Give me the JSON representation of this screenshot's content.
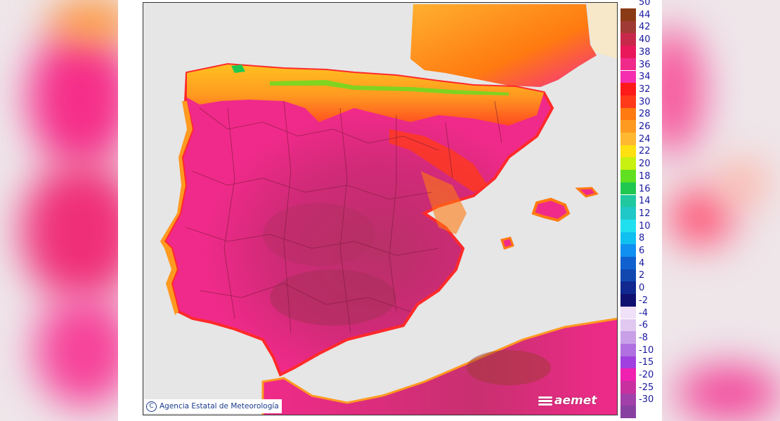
{
  "credit": {
    "text": "Agencia Estatal de Meteorología",
    "copyright_symbol": "C"
  },
  "logo": {
    "text": "aemet"
  },
  "legend": {
    "scale": [
      {
        "label": "50",
        "color": "#8a3a14"
      },
      {
        "label": "44",
        "color": "#a03a34"
      },
      {
        "label": "42",
        "color": "#c8284a"
      },
      {
        "label": "40",
        "color": "#e8185a"
      },
      {
        "label": "38",
        "color": "#f02a8a"
      },
      {
        "label": "36",
        "color": "#f52eb0"
      },
      {
        "label": "34",
        "color": "#ff1a1a"
      },
      {
        "label": "32",
        "color": "#ff3a1a"
      },
      {
        "label": "30",
        "color": "#ff7a10"
      },
      {
        "label": "28",
        "color": "#ff9a20"
      },
      {
        "label": "26",
        "color": "#ffb830"
      },
      {
        "label": "24",
        "color": "#ffe010"
      },
      {
        "label": "22",
        "color": "#c8f010"
      },
      {
        "label": "20",
        "color": "#60e020"
      },
      {
        "label": "18",
        "color": "#20c850"
      },
      {
        "label": "16",
        "color": "#20c8a0"
      },
      {
        "label": "14",
        "color": "#20c8c8"
      },
      {
        "label": "12",
        "color": "#20e0f0"
      },
      {
        "label": "10",
        "color": "#10c0f0"
      },
      {
        "label": "8",
        "color": "#1090f0"
      },
      {
        "label": "6",
        "color": "#1060d0"
      },
      {
        "label": "4",
        "color": "#1048b0"
      },
      {
        "label": "2",
        "color": "#102890"
      },
      {
        "label": "0",
        "color": "#101070"
      },
      {
        "label": "-2",
        "color": "#f0e0f8"
      },
      {
        "label": "-4",
        "color": "#e0c8f0"
      },
      {
        "label": "-6",
        "color": "#c8a0e8"
      },
      {
        "label": "-8",
        "color": "#b070e0"
      },
      {
        "label": "-10",
        "color": "#a040e0"
      },
      {
        "label": "-15",
        "color": "#f020b0"
      },
      {
        "label": "-20",
        "color": "#c830a0"
      },
      {
        "label": "-25",
        "color": "#a040a8"
      },
      {
        "label": "-30",
        "color": "#8840a0"
      }
    ]
  },
  "map": {
    "sea_color": "#e4e4e4",
    "land_hot": "#f02a8a",
    "land_very_hot": "#b8306a",
    "land_warm": "#ff9a20",
    "land_mild": "#ffd020",
    "coast_band": "#ff2a2a"
  }
}
